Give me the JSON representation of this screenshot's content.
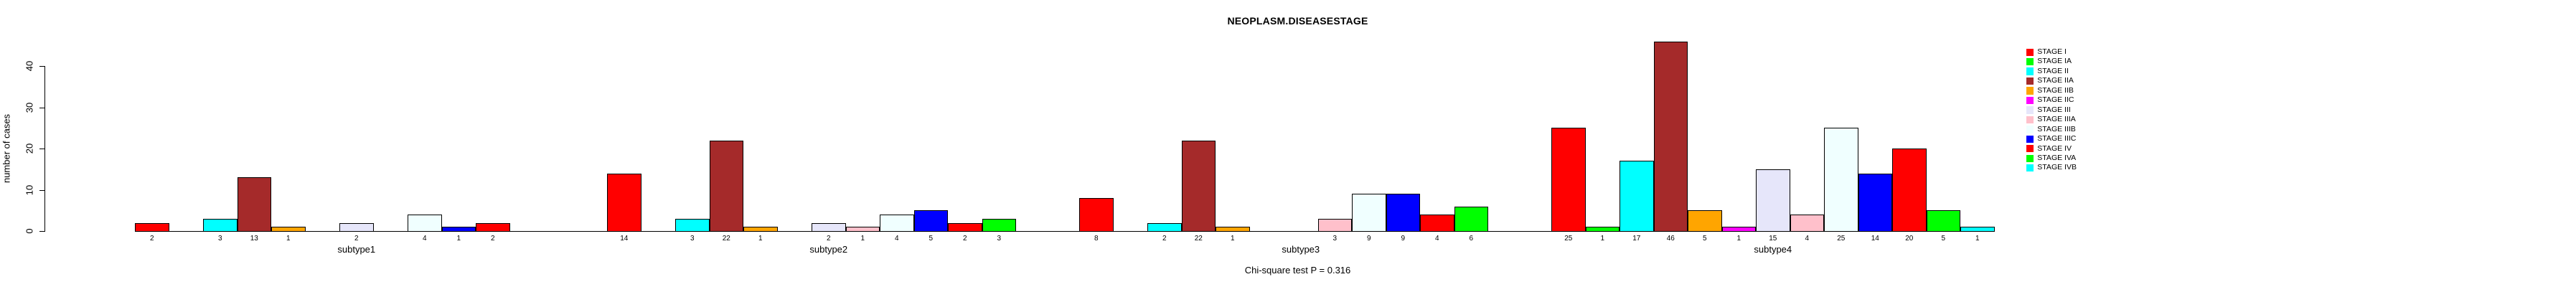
{
  "title": "NEOPLASM.DISEASESTAGE",
  "annotation": "Chi-square test P = 0.316",
  "y_axis": {
    "label": "number of cases",
    "ticks": [
      0,
      10,
      20,
      30,
      40
    ]
  },
  "chart_data": {
    "type": "bar",
    "title": "NEOPLASM.DISEASESTAGE",
    "xlabel": "",
    "ylabel": "number of cases",
    "ylim": [
      0,
      40
    ],
    "yticks": [
      0,
      10,
      20,
      30,
      40
    ],
    "grid": false,
    "legend_position": "right",
    "annotation": "Chi-square test P = 0.316",
    "bar_label_rule": "count shown under each nonzero bar",
    "categories": [
      "subtype1",
      "subtype2",
      "subtype3",
      "subtype4"
    ],
    "series": [
      {
        "name": "STAGE I",
        "color": "#FF0000",
        "values": [
          2,
          14,
          8,
          25
        ]
      },
      {
        "name": "STAGE IA",
        "color": "#00FF00",
        "values": [
          0,
          0,
          0,
          1
        ]
      },
      {
        "name": "STAGE II",
        "color": "#00FFFF",
        "values": [
          3,
          3,
          2,
          17
        ]
      },
      {
        "name": "STAGE IIA",
        "color": "#A52A2A",
        "values": [
          13,
          22,
          22,
          46
        ]
      },
      {
        "name": "STAGE IIB",
        "color": "#FFA500",
        "values": [
          1,
          1,
          1,
          5
        ]
      },
      {
        "name": "STAGE IIC",
        "color": "#FF00FF",
        "values": [
          0,
          0,
          0,
          1
        ]
      },
      {
        "name": "STAGE III",
        "color": "#E6E6FA",
        "values": [
          2,
          2,
          0,
          15
        ]
      },
      {
        "name": "STAGE IIIA",
        "color": "#FFC0CB",
        "values": [
          0,
          1,
          3,
          4
        ]
      },
      {
        "name": "STAGE IIIB",
        "color": "#F0FFFF",
        "values": [
          4,
          4,
          9,
          25
        ]
      },
      {
        "name": "STAGE IIIC",
        "color": "#0000FF",
        "values": [
          1,
          5,
          9,
          14
        ]
      },
      {
        "name": "STAGE IV",
        "color": "#FF0000",
        "values": [
          2,
          2,
          4,
          20
        ]
      },
      {
        "name": "STAGE IVA",
        "color": "#00FF00",
        "values": [
          0,
          3,
          6,
          5
        ]
      },
      {
        "name": "STAGE IVB",
        "color": "#00FFFF",
        "values": [
          0,
          0,
          0,
          1
        ]
      }
    ]
  }
}
